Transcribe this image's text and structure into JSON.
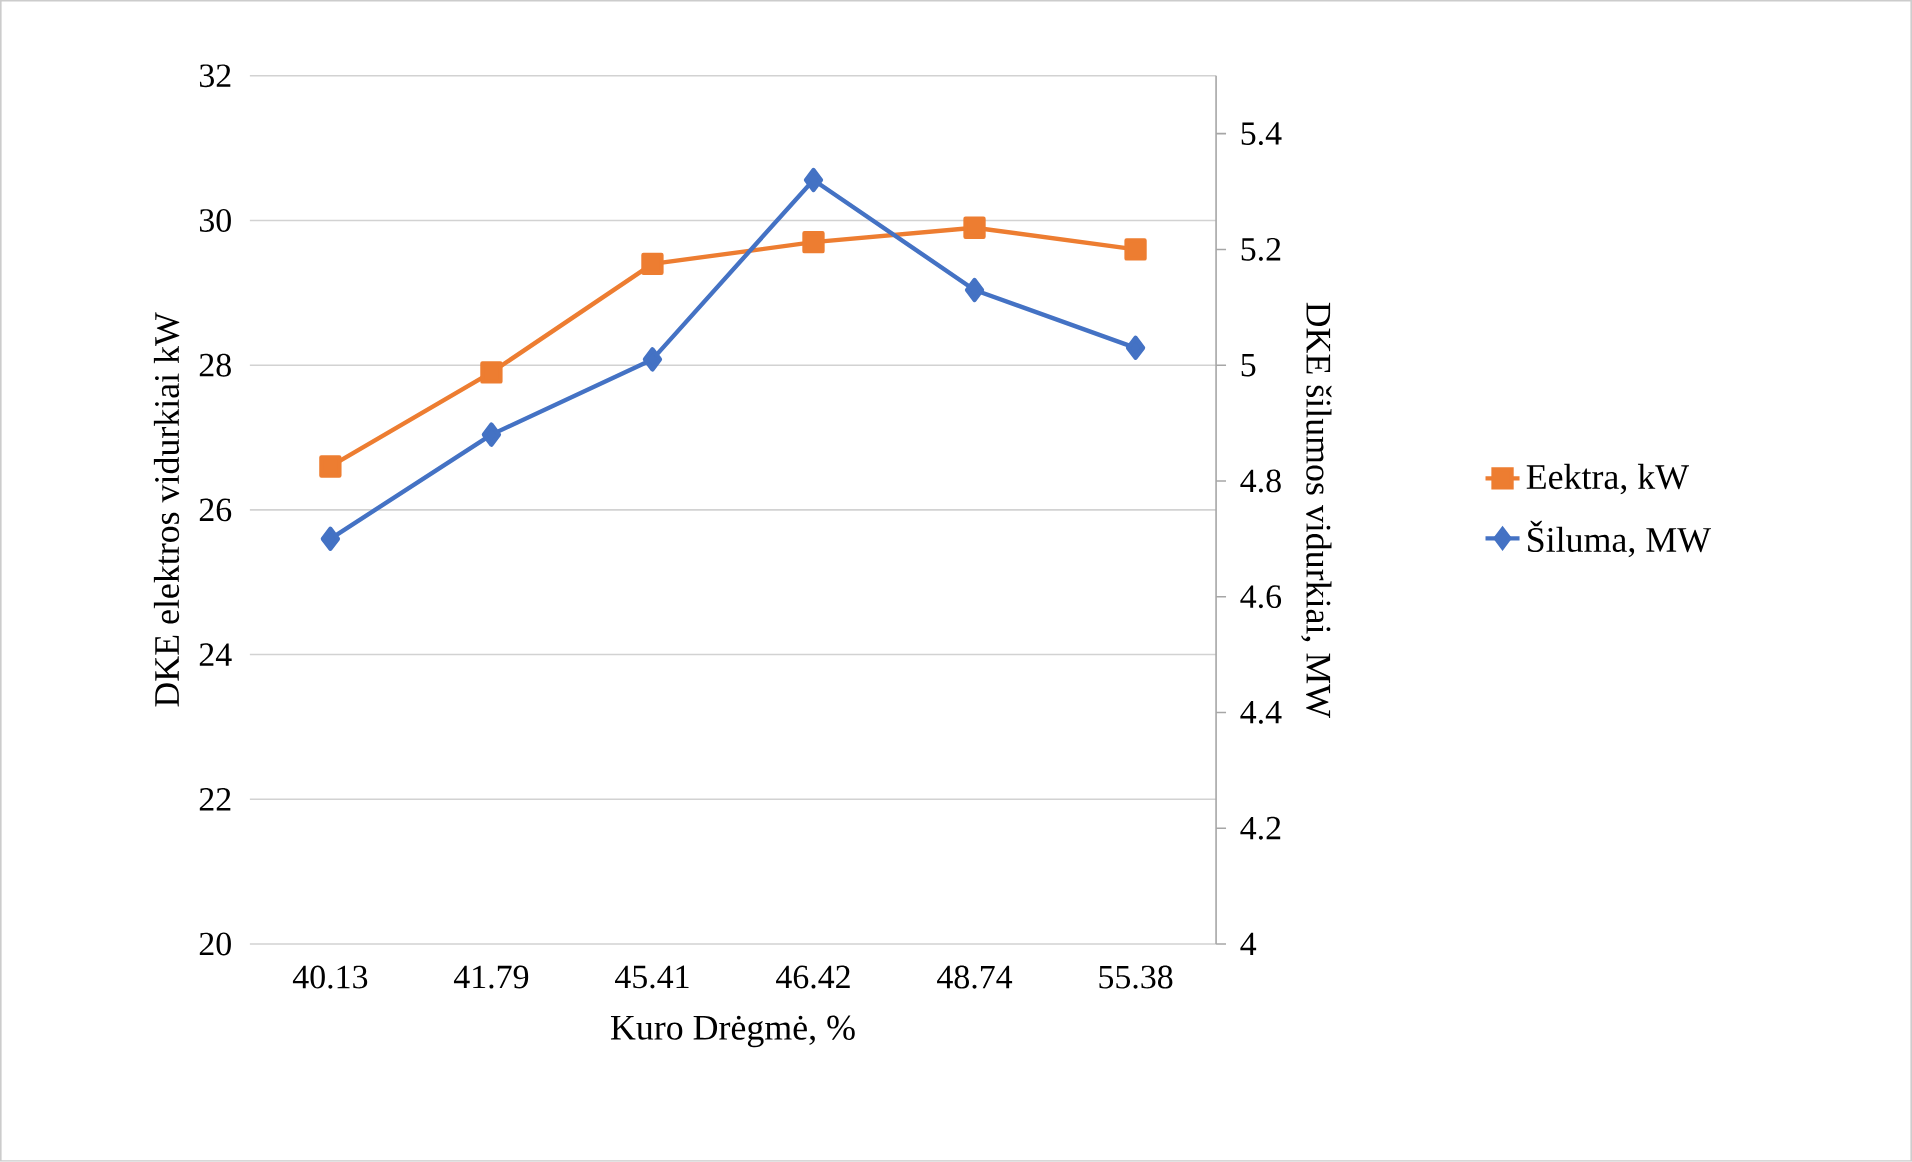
{
  "chart_data": {
    "type": "line",
    "xlabel": "Kuro Drėgmė, %",
    "ylabel": "DKE  elektros vidurkiai kW",
    "y2label": "DKE šilumos vidurkiai, MW",
    "categories": [
      "40.13",
      "41.79",
      "45.41",
      "46.42",
      "48.74",
      "55.38"
    ],
    "series": [
      {
        "name": "Eektra, kW",
        "color": "#ed7d31",
        "marker": "square",
        "values": [
          26.6,
          27.9,
          29.4,
          29.7,
          29.9,
          29.6
        ]
      },
      {
        "name": "Šiluma, MW",
        "color": "#4472c4",
        "marker": "diamond",
        "axis": "y2",
        "values": [
          4.7,
          4.88,
          5.01,
          5.32,
          5.13,
          5.03
        ]
      }
    ],
    "ylim": [
      20,
      32
    ],
    "yticks": [
      20,
      22,
      24,
      26,
      28,
      30,
      32
    ],
    "y2lim": [
      4,
      5.5
    ],
    "y2ticks": [
      4,
      4.2,
      4.4,
      4.6,
      4.8,
      5,
      5.2,
      5.4
    ],
    "grid": "y",
    "legend": "right",
    "line_style": "solid"
  }
}
